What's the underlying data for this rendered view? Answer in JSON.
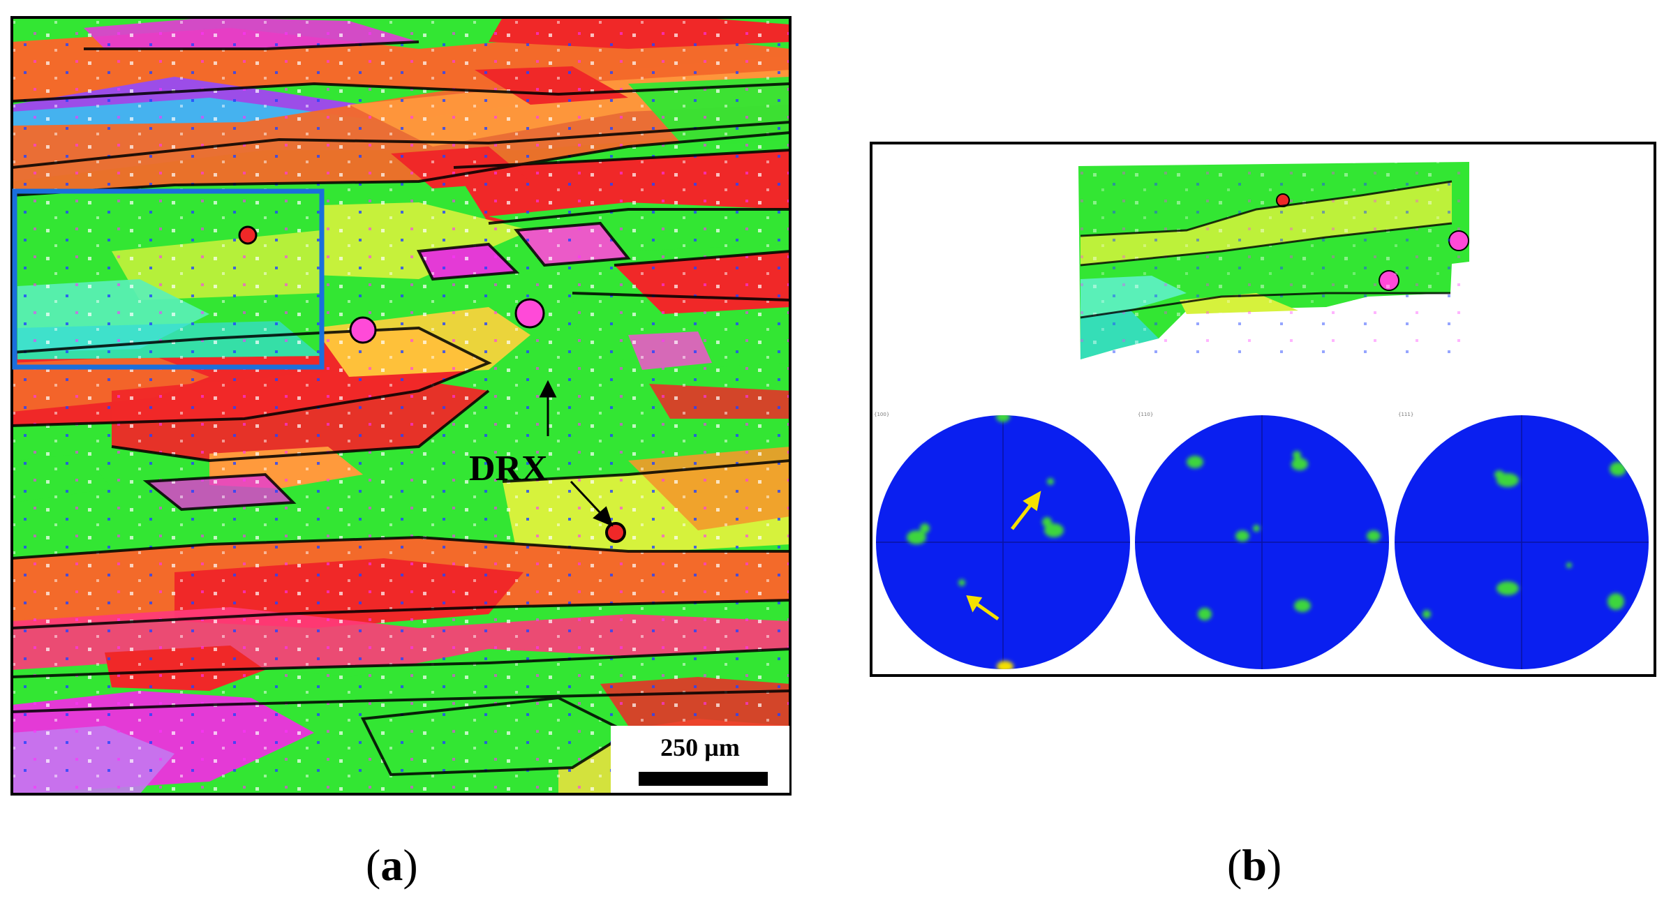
{
  "panel_a": {
    "annotation": "DRX",
    "scale_bar_label": "250 µm",
    "label_letter": "a"
  },
  "panel_b": {
    "label_letter": "b",
    "pole_figure_titles": [
      "{100}",
      "{110}",
      "{111}"
    ]
  },
  "colors": {
    "green": "#33e633",
    "red": "#f02828",
    "orange": "#f36a2a",
    "magenta": "#e43ad6",
    "yellow": "#d6f23c",
    "cyan": "#36dcd8",
    "blue_box": "#1a6fdc",
    "pole_blue": "#0a1ff0",
    "arrow_yellow": "#f5e000"
  }
}
